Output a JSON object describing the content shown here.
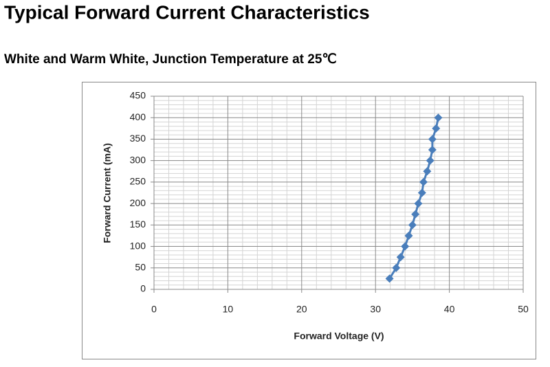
{
  "heading": "Typical Forward Current Characteristics",
  "chart_data": {
    "type": "line",
    "subtitle": "White and Warm White, Junction Temperature at 25℃",
    "x_label": "Forward Voltage (V)",
    "y_label": "Forward Current (mA)",
    "x": [
      31.9,
      32.8,
      33.4,
      34.0,
      34.5,
      35.0,
      35.4,
      35.8,
      36.3,
      36.5,
      37.0,
      37.4,
      37.7,
      37.7,
      38.2,
      38.5
    ],
    "series": [
      {
        "color": "#4a7ebb",
        "values": [
          25,
          50,
          75,
          100,
          125,
          150,
          175,
          200,
          225,
          250,
          275,
          300,
          325,
          350,
          375,
          400
        ]
      }
    ],
    "xlim": [
      0,
      50
    ],
    "xticks": [
      0,
      10,
      20,
      30,
      40,
      50
    ],
    "ylim": [
      0,
      450
    ],
    "yticks": [
      0,
      50,
      100,
      150,
      200,
      250,
      300,
      350,
      400,
      450
    ],
    "grid": true,
    "minor_grid": true,
    "marker": "diamond"
  }
}
